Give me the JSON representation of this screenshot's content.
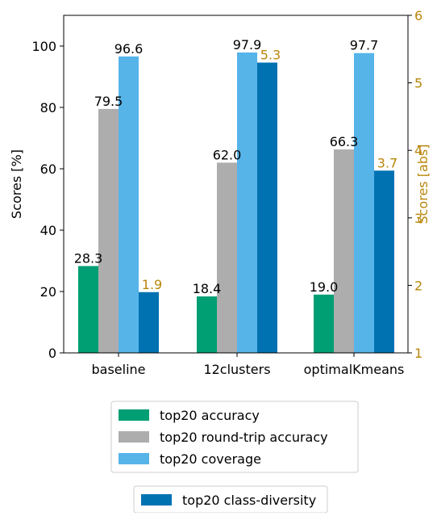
{
  "chart_data": {
    "type": "bar",
    "categories": [
      "baseline",
      "12clusters",
      "optimalKmeans"
    ],
    "ylabel": "Scores [%]",
    "ylim": [
      0,
      110
    ],
    "yticks": [
      "0",
      "20",
      "40",
      "60",
      "80",
      "100"
    ],
    "y2label": "Scores [abs]",
    "y2lim": [
      1,
      6
    ],
    "y2ticks": [
      "1",
      "2",
      "3",
      "4",
      "5",
      "6"
    ],
    "grid": false,
    "secondary_color": "#B8860B",
    "series": [
      {
        "name": "top20 accuracy",
        "axis": "left",
        "color": "#009E73",
        "values": [
          28.3,
          18.4,
          19.0
        ],
        "labels": [
          "28.3",
          "18.4",
          "19.0"
        ]
      },
      {
        "name": "top20 round-trip accuracy",
        "axis": "left",
        "color": "#ADADAD",
        "values": [
          79.5,
          62.0,
          66.3
        ],
        "labels": [
          "79.5",
          "62.0",
          "66.3"
        ]
      },
      {
        "name": "top20 coverage",
        "axis": "left",
        "color": "#56B4E9",
        "values": [
          96.6,
          97.9,
          97.7
        ],
        "labels": [
          "96.6",
          "97.9",
          "97.7"
        ]
      },
      {
        "name": "top20 class-diversity",
        "axis": "right",
        "color": "#0072B2",
        "values": [
          1.9,
          5.3,
          3.7
        ],
        "labels": [
          "1.9",
          "5.3",
          "3.7"
        ]
      }
    ],
    "legends": [
      {
        "position": "bottom",
        "items": [
          "top20 accuracy",
          "top20 round-trip accuracy",
          "top20 coverage"
        ]
      },
      {
        "position": "bottom",
        "items": [
          "top20 class-diversity"
        ]
      }
    ]
  }
}
